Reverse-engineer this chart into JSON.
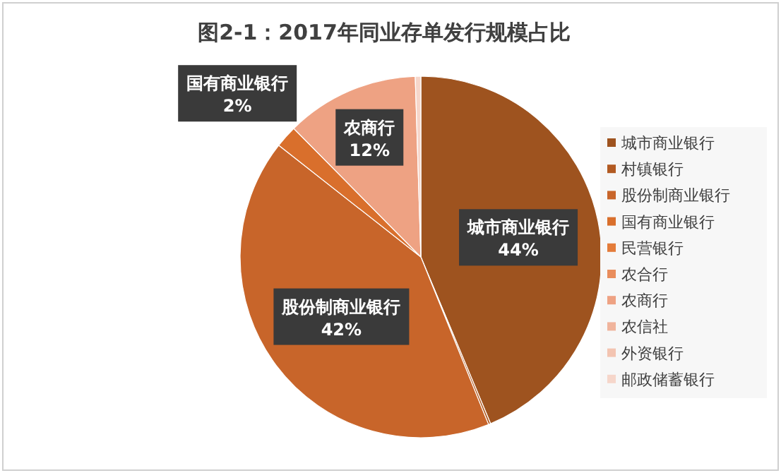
{
  "chart_data": {
    "type": "pie",
    "title": "图2-1：2017年同业存单发行规模占比",
    "categories": [
      "城市商业银行",
      "村镇银行",
      "股份制商业银行",
      "国有商业银行",
      "民营银行",
      "农合行",
      "农商行",
      "农信社",
      "外资银行",
      "邮政储蓄银行"
    ],
    "values": [
      44,
      0.2,
      42,
      2,
      0,
      0,
      12,
      0,
      0,
      0.5
    ],
    "value_labels": [
      "44%",
      null,
      "42%",
      "2%",
      null,
      null,
      "12%",
      null,
      null,
      null
    ],
    "colors": [
      "#9e531f",
      "#b25a22",
      "#c8652a",
      "#d96f2c",
      "#e47c3a",
      "#e98d5c",
      "#eea283",
      "#f0b49c",
      "#f3c4b1",
      "#f6d6ca"
    ],
    "legend": "right"
  }
}
